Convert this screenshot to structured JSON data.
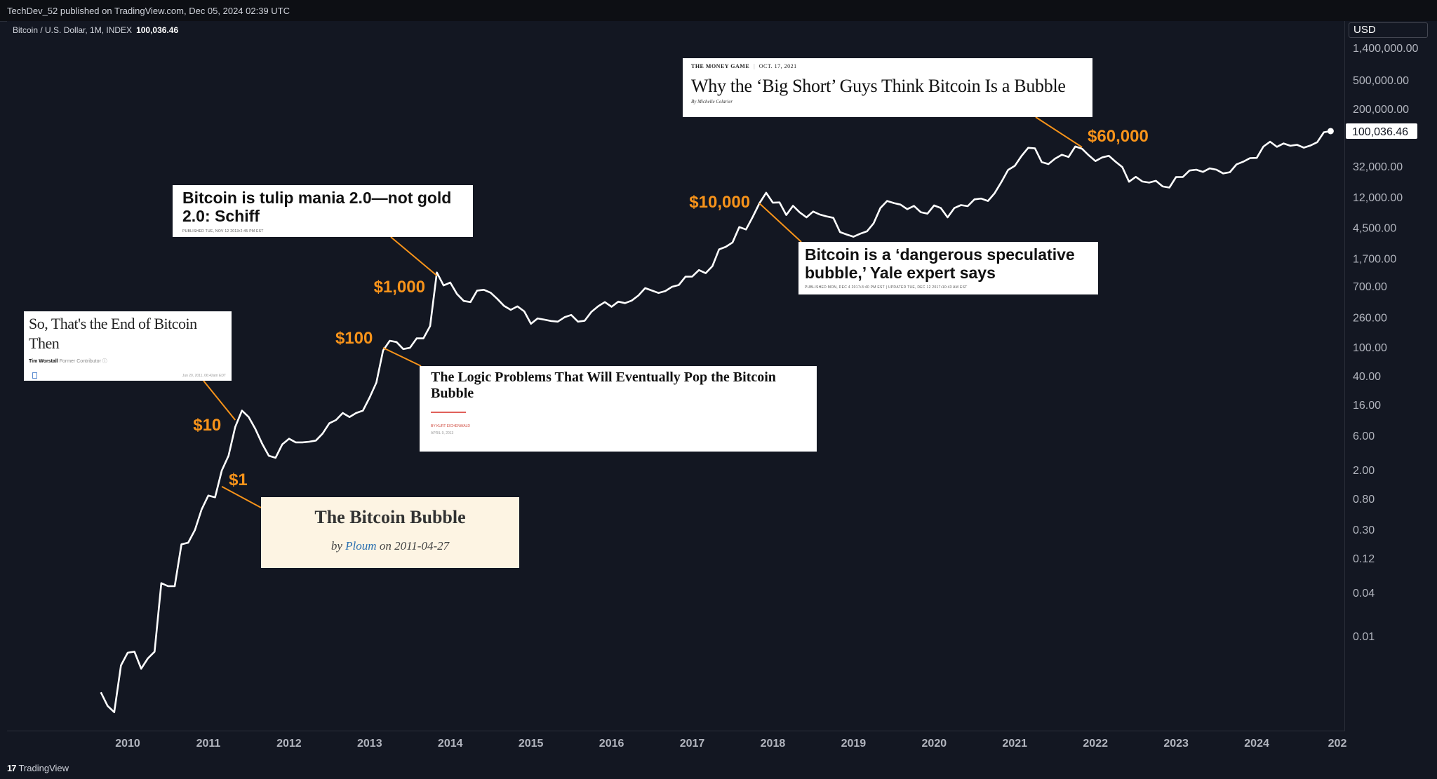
{
  "header": {
    "publish_line": "TechDev_52 published on TradingView.com, Dec 05, 2024 02:39 UTC"
  },
  "legend": {
    "symbol": "Bitcoin / U.S. Dollar, 1M, INDEX",
    "last_value": "100,036.46"
  },
  "currency_label": "USD",
  "footer": {
    "brand": "TradingView",
    "logo_glyph": "17"
  },
  "chart_data": {
    "type": "line",
    "scale": "log",
    "line_color": "#ffffff",
    "callout_color": "#f7931a",
    "y_ticks": [
      {
        "label": "1,400,000.00",
        "value": 1400000
      },
      {
        "label": "500,000.00",
        "value": 500000
      },
      {
        "label": "200,000.00",
        "value": 200000
      },
      {
        "label": "32,000.00",
        "value": 32000
      },
      {
        "label": "12,000.00",
        "value": 12000
      },
      {
        "label": "4,500.00",
        "value": 4500
      },
      {
        "label": "1,700.00",
        "value": 1700
      },
      {
        "label": "700.00",
        "value": 700
      },
      {
        "label": "260.00",
        "value": 260
      },
      {
        "label": "100.00",
        "value": 100
      },
      {
        "label": "40.00",
        "value": 40
      },
      {
        "label": "16.00",
        "value": 16
      },
      {
        "label": "6.00",
        "value": 6
      },
      {
        "label": "2.00",
        "value": 2
      },
      {
        "label": "0.80",
        "value": 0.8
      },
      {
        "label": "0.30",
        "value": 0.3
      },
      {
        "label": "0.12",
        "value": 0.12
      },
      {
        "label": "0.04",
        "value": 0.04
      },
      {
        "label": "0.01",
        "value": 0.01
      }
    ],
    "x_ticks": [
      "2010",
      "2011",
      "2012",
      "2013",
      "2014",
      "2015",
      "2016",
      "2017",
      "2018",
      "2019",
      "2020",
      "2021",
      "2022",
      "2023",
      "2024",
      "202"
    ],
    "last_price_label": "100,036.46",
    "series": [
      {
        "points": [
          [
            "2009-09",
            0.0017
          ],
          [
            "2009-10",
            0.0011
          ],
          [
            "2009-11",
            0.0009
          ],
          [
            "2009-12",
            0.004
          ],
          [
            "2010-01",
            0.006
          ],
          [
            "2010-02",
            0.0062
          ],
          [
            "2010-03",
            0.0036
          ],
          [
            "2010-04",
            0.005
          ],
          [
            "2010-05",
            0.0062
          ],
          [
            "2010-06",
            0.055
          ],
          [
            "2010-07",
            0.05
          ],
          [
            "2010-08",
            0.05
          ],
          [
            "2010-09",
            0.19
          ],
          [
            "2010-10",
            0.2
          ],
          [
            "2010-11",
            0.3
          ],
          [
            "2010-12",
            0.58
          ],
          [
            "2011-01",
            0.9
          ],
          [
            "2011-02",
            0.85
          ],
          [
            "2011-03",
            2.0
          ],
          [
            "2011-04",
            3.2
          ],
          [
            "2011-05",
            8.0
          ],
          [
            "2011-06",
            13.5
          ],
          [
            "2011-07",
            11.0
          ],
          [
            "2011-08",
            7.5
          ],
          [
            "2011-09",
            4.7
          ],
          [
            "2011-10",
            3.2
          ],
          [
            "2011-11",
            3.0
          ],
          [
            "2011-12",
            4.6
          ],
          [
            "2012-01",
            5.5
          ],
          [
            "2012-02",
            4.9
          ],
          [
            "2012-03",
            4.9
          ],
          [
            "2012-04",
            5.0
          ],
          [
            "2012-05",
            5.2
          ],
          [
            "2012-06",
            6.5
          ],
          [
            "2012-07",
            9.0
          ],
          [
            "2012-08",
            10.0
          ],
          [
            "2012-09",
            12.5
          ],
          [
            "2012-10",
            11.0
          ],
          [
            "2012-11",
            12.5
          ],
          [
            "2012-12",
            13.5
          ],
          [
            "2013-01",
            20.5
          ],
          [
            "2013-02",
            33.0
          ],
          [
            "2013-03",
            92.0
          ],
          [
            "2013-04",
            125.0
          ],
          [
            "2013-05",
            120.0
          ],
          [
            "2013-06",
            96.0
          ],
          [
            "2013-07",
            100.0
          ],
          [
            "2013-08",
            135.0
          ],
          [
            "2013-09",
            135.0
          ],
          [
            "2013-10",
            200.0
          ],
          [
            "2013-11",
            1100.0
          ],
          [
            "2013-12",
            730.0
          ],
          [
            "2014-01",
            800.0
          ],
          [
            "2014-02",
            555.0
          ],
          [
            "2014-03",
            445.0
          ],
          [
            "2014-04",
            430.0
          ],
          [
            "2014-05",
            620.0
          ],
          [
            "2014-06",
            635.0
          ],
          [
            "2014-07",
            580.0
          ],
          [
            "2014-08",
            475.0
          ],
          [
            "2014-09",
            380.0
          ],
          [
            "2014-10",
            335.0
          ],
          [
            "2014-11",
            375.0
          ],
          [
            "2014-12",
            320.0
          ],
          [
            "2015-01",
            215.0
          ],
          [
            "2015-02",
            255.0
          ],
          [
            "2015-03",
            245.0
          ],
          [
            "2015-04",
            235.0
          ],
          [
            "2015-05",
            230.0
          ],
          [
            "2015-06",
            265.0
          ],
          [
            "2015-07",
            285.0
          ],
          [
            "2015-08",
            230.0
          ],
          [
            "2015-09",
            237.0
          ],
          [
            "2015-10",
            315.0
          ],
          [
            "2015-11",
            375.0
          ],
          [
            "2015-12",
            430.0
          ],
          [
            "2016-01",
            370.0
          ],
          [
            "2016-02",
            435.0
          ],
          [
            "2016-03",
            415.0
          ],
          [
            "2016-04",
            450.0
          ],
          [
            "2016-05",
            530.0
          ],
          [
            "2016-06",
            670.0
          ],
          [
            "2016-07",
            620.0
          ],
          [
            "2016-08",
            575.0
          ],
          [
            "2016-09",
            610.0
          ],
          [
            "2016-10",
            700.0
          ],
          [
            "2016-11",
            740.0
          ],
          [
            "2016-12",
            965.0
          ],
          [
            "2017-01",
            970.0
          ],
          [
            "2017-02",
            1190.0
          ],
          [
            "2017-03",
            1080.0
          ],
          [
            "2017-04",
            1350.0
          ],
          [
            "2017-05",
            2300.0
          ],
          [
            "2017-06",
            2500.0
          ],
          [
            "2017-07",
            2870.0
          ],
          [
            "2017-08",
            4700.0
          ],
          [
            "2017-09",
            4340.0
          ],
          [
            "2017-10",
            6470.0
          ],
          [
            "2017-11",
            10000.0
          ],
          [
            "2017-12",
            14000.0
          ],
          [
            "2018-01",
            10200.0
          ],
          [
            "2018-02",
            10300.0
          ],
          [
            "2018-03",
            6900.0
          ],
          [
            "2018-04",
            9250.0
          ],
          [
            "2018-05",
            7500.0
          ],
          [
            "2018-06",
            6400.0
          ],
          [
            "2018-07",
            7700.0
          ],
          [
            "2018-08",
            7000.0
          ],
          [
            "2018-09",
            6600.0
          ],
          [
            "2018-10",
            6300.0
          ],
          [
            "2018-11",
            4000.0
          ],
          [
            "2018-12",
            3700.0
          ],
          [
            "2019-01",
            3450.0
          ],
          [
            "2019-02",
            3800.0
          ],
          [
            "2019-03",
            4100.0
          ],
          [
            "2019-04",
            5300.0
          ],
          [
            "2019-05",
            8600.0
          ],
          [
            "2019-06",
            10800.0
          ],
          [
            "2019-07",
            10100.0
          ],
          [
            "2019-08",
            9600.0
          ],
          [
            "2019-09",
            8300.0
          ],
          [
            "2019-10",
            9200.0
          ],
          [
            "2019-11",
            7550.0
          ],
          [
            "2019-12",
            7200.0
          ],
          [
            "2020-01",
            9350.0
          ],
          [
            "2020-02",
            8600.0
          ],
          [
            "2020-03",
            6400.0
          ],
          [
            "2020-04",
            8600.0
          ],
          [
            "2020-05",
            9450.0
          ],
          [
            "2020-06",
            9150.0
          ],
          [
            "2020-07",
            11350.0
          ],
          [
            "2020-08",
            11650.0
          ],
          [
            "2020-09",
            10800.0
          ],
          [
            "2020-10",
            13800.0
          ],
          [
            "2020-11",
            19700.0
          ],
          [
            "2020-12",
            29000.0
          ],
          [
            "2021-01",
            33100.0
          ],
          [
            "2021-02",
            45200.0
          ],
          [
            "2021-03",
            58800.0
          ],
          [
            "2021-04",
            57700.0
          ],
          [
            "2021-05",
            37300.0
          ],
          [
            "2021-06",
            35000.0
          ],
          [
            "2021-07",
            41500.0
          ],
          [
            "2021-08",
            47100.0
          ],
          [
            "2021-09",
            43800.0
          ],
          [
            "2021-10",
            61300.0
          ],
          [
            "2021-11",
            57000.0
          ],
          [
            "2021-12",
            46300.0
          ],
          [
            "2022-01",
            38500.0
          ],
          [
            "2022-02",
            43200.0
          ],
          [
            "2022-03",
            45500.0
          ],
          [
            "2022-04",
            37700.0
          ],
          [
            "2022-05",
            31800.0
          ],
          [
            "2022-06",
            19900.0
          ],
          [
            "2022-07",
            23300.0
          ],
          [
            "2022-08",
            20050.0
          ],
          [
            "2022-09",
            19400.0
          ],
          [
            "2022-10",
            20500.0
          ],
          [
            "2022-11",
            17150.0
          ],
          [
            "2022-12",
            16550.0
          ],
          [
            "2023-01",
            23100.0
          ],
          [
            "2023-02",
            23150.0
          ],
          [
            "2023-03",
            28500.0
          ],
          [
            "2023-04",
            29250.0
          ],
          [
            "2023-05",
            27200.0
          ],
          [
            "2023-06",
            30500.0
          ],
          [
            "2023-07",
            29250.0
          ],
          [
            "2023-08",
            25950.0
          ],
          [
            "2023-09",
            27000.0
          ],
          [
            "2023-10",
            34650.0
          ],
          [
            "2023-11",
            37700.0
          ],
          [
            "2023-12",
            42300.0
          ],
          [
            "2024-01",
            42600.0
          ],
          [
            "2024-02",
            61200.0
          ],
          [
            "2024-03",
            71300.0
          ],
          [
            "2024-04",
            60600.0
          ],
          [
            "2024-05",
            67500.0
          ],
          [
            "2024-06",
            62700.0
          ],
          [
            "2024-07",
            64600.0
          ],
          [
            "2024-08",
            59000.0
          ],
          [
            "2024-09",
            63300.0
          ],
          [
            "2024-10",
            70200.0
          ],
          [
            "2024-11",
            96400.0
          ],
          [
            "2024-12",
            100036.46
          ]
        ]
      }
    ],
    "callouts": [
      {
        "label": "$1",
        "date": "2011-03",
        "value": 1.2
      },
      {
        "label": "$10",
        "date": "2011-05",
        "value": 10
      },
      {
        "label": "$100",
        "date": "2013-03",
        "value": 100
      },
      {
        "label": "$1,000",
        "date": "2013-11",
        "value": 1000
      },
      {
        "label": "$10,000",
        "date": "2017-11",
        "value": 10000
      },
      {
        "label": "$60,000",
        "date": "2021-11",
        "value": 60000
      }
    ]
  },
  "headlines": [
    {
      "id": "forbes",
      "title": "So, That's the End of Bitcoin Then",
      "author": "Tim Worstall",
      "author_note": "Former Contributor ⓘ",
      "meta": "Jun 20, 2011, 06:42am EDT"
    },
    {
      "id": "bubble",
      "title": "The Bitcoin Bubble",
      "byline_prefix": "by ",
      "byline_author": "Ploum",
      "byline_suffix": " on 2011-04-27"
    },
    {
      "id": "schiff",
      "title": "Bitcoin is tulip mania 2.0—not gold 2.0: Schiff",
      "meta": "PUBLISHED TUE, NOV 12 2013•2:45 PM EST"
    },
    {
      "id": "logic",
      "title": "The Logic Problems That Will Eventually Pop the Bitcoin Bubble",
      "author": "BY KURT EICHENWALD",
      "meta": "APRIL 9, 2013"
    },
    {
      "id": "yale",
      "title": "Bitcoin is a ‘dangerous speculative bubble,’ Yale expert says",
      "meta": "PUBLISHED MON, DEC 4 2017•3:40 PM EST | UPDATED TUE, DEC 12 2017•10:43 AM EST"
    },
    {
      "id": "bigshort",
      "kicker": "THE MONEY GAME",
      "date": "OCT. 17, 2021",
      "title": "Why the ‘Big Short’ Guys Think Bitcoin Is a Bubble",
      "author": "By Michelle Celarier"
    }
  ]
}
